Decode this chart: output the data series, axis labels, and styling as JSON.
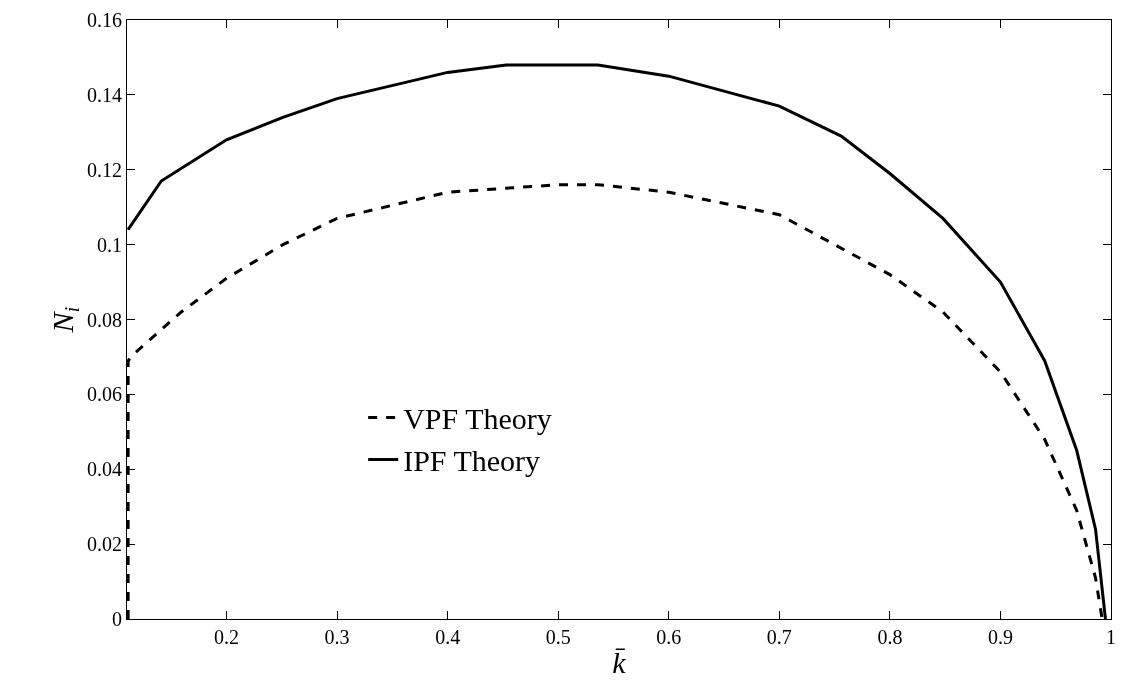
{
  "chart_data": {
    "type": "line",
    "xlabel": "k̄",
    "ylabel": "N$_{i}$",
    "xlim": [
      0.11,
      1
    ],
    "xticks": [
      0.2,
      0.3,
      0.4,
      0.5,
      0.6,
      0.7,
      0.8,
      0.9,
      1
    ],
    "ylim": [
      0,
      0.16
    ],
    "yticks": [
      0,
      0.02,
      0.04,
      0.06,
      0.08,
      0.1,
      0.12,
      0.14,
      0.16
    ],
    "grid": false,
    "legend": "left",
    "marker": "none",
    "series": [
      {
        "name": "VPF Theory",
        "color": "#000000",
        "line_style": "dashed",
        "x": [
          0.111,
          0.111,
          0.117,
          0.159,
          0.2,
          0.251,
          0.3,
          0.4,
          0.5,
          0.536,
          0.6,
          0.7,
          0.8,
          0.848,
          0.9,
          0.94,
          0.969,
          0.986,
          0.992
        ],
        "values": [
          0,
          0.069,
          0.071,
          0.082,
          0.091,
          0.1,
          0.107,
          0.114,
          0.116,
          0.116,
          0.114,
          0.108,
          0.092,
          0.082,
          0.066,
          0.048,
          0.029,
          0.011,
          0
        ]
      },
      {
        "name": "IPF Theory",
        "color": "#000000",
        "line_style": "solid",
        "x": [
          0.111,
          0.141,
          0.2,
          0.251,
          0.3,
          0.4,
          0.453,
          0.5,
          0.536,
          0.6,
          0.7,
          0.756,
          0.8,
          0.848,
          0.9,
          0.94,
          0.969,
          0.986,
          0.995
        ],
        "values": [
          0.104,
          0.117,
          0.128,
          0.134,
          0.139,
          0.146,
          0.148,
          0.148,
          0.148,
          0.145,
          0.137,
          0.129,
          0.119,
          0.107,
          0.09,
          0.069,
          0.045,
          0.024,
          0
        ]
      }
    ]
  }
}
